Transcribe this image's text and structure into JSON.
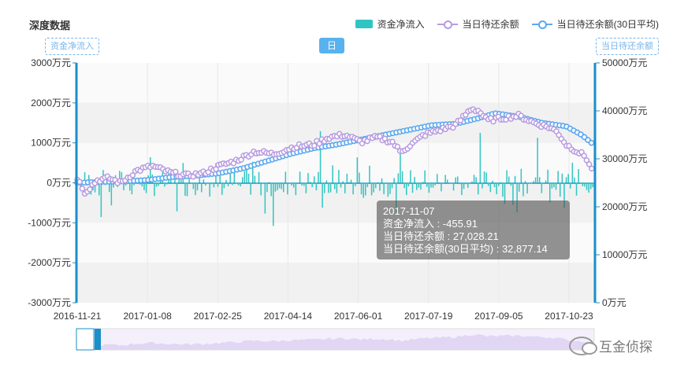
{
  "title": "深度数据",
  "legend": {
    "bar": "资金净流入",
    "line": "当日待还余额",
    "avg": "当日待还余额(30日平均)"
  },
  "controls": {
    "left_toggle": "资金净流入",
    "period": "日",
    "right_toggle": "当日待还余额"
  },
  "tooltip": {
    "date": "2017-11-07",
    "line1": "资金净流入 : -455.91",
    "line2": "当日待还余额 : 27,028.21",
    "line3": "当日待还余额(30日平均) : 32,877.14"
  },
  "watermark": "互金侦探",
  "colors": {
    "bar": "#31c5c1",
    "line": "#b79ce0",
    "avg": "#5aa9f0",
    "axis": "#1a8fc9"
  },
  "chart_data": {
    "type": "bar",
    "left_axis": {
      "ticks": [
        "3000万元",
        "2000万元",
        "1000万元",
        "0万元",
        "-1000万元",
        "-2000万元",
        "-3000万元"
      ],
      "range": [
        -3000,
        3000
      ]
    },
    "right_axis": {
      "ticks": [
        "50000万元",
        "40000万元",
        "30000万元",
        "20000万元",
        "10000万元",
        "0万元"
      ],
      "range": [
        0,
        50000
      ]
    },
    "x_ticks": [
      "2016-11-21",
      "2017-01-08",
      "2017-02-25",
      "2017-04-14",
      "2017-06-01",
      "2017-07-19",
      "2017-09-05",
      "2017-10-23"
    ],
    "balance_keypoints": [
      [
        0,
        26000
      ],
      [
        10,
        23000
      ],
      [
        25,
        25500
      ],
      [
        40,
        26000
      ],
      [
        55,
        25000
      ],
      [
        75,
        27500
      ],
      [
        95,
        28500
      ],
      [
        120,
        27000
      ],
      [
        140,
        26500
      ],
      [
        160,
        27000
      ],
      [
        180,
        28500
      ],
      [
        200,
        29500
      ],
      [
        225,
        31500
      ],
      [
        250,
        31000
      ],
      [
        275,
        32500
      ],
      [
        300,
        33000
      ],
      [
        320,
        34500
      ],
      [
        340,
        35000
      ],
      [
        360,
        33500
      ],
      [
        380,
        34500
      ],
      [
        400,
        33500
      ],
      [
        410,
        31500
      ],
      [
        420,
        32500
      ],
      [
        440,
        35000
      ],
      [
        460,
        36000
      ],
      [
        480,
        37000
      ],
      [
        500,
        40500
      ],
      [
        510,
        40000
      ],
      [
        520,
        38000
      ],
      [
        540,
        38500
      ],
      [
        560,
        39000
      ],
      [
        580,
        37500
      ],
      [
        600,
        36500
      ],
      [
        610,
        35500
      ],
      [
        620,
        33000
      ],
      [
        630,
        32000
      ],
      [
        645,
        30500
      ],
      [
        655,
        27000
      ]
    ],
    "avg_keypoints": [
      [
        0,
        25000
      ],
      [
        30,
        25200
      ],
      [
        60,
        25300
      ],
      [
        90,
        25600
      ],
      [
        120,
        26200
      ],
      [
        150,
        26500
      ],
      [
        180,
        27000
      ],
      [
        210,
        28000
      ],
      [
        240,
        29500
      ],
      [
        270,
        31000
      ],
      [
        300,
        32200
      ],
      [
        330,
        33000
      ],
      [
        360,
        34000
      ],
      [
        390,
        35000
      ],
      [
        420,
        36000
      ],
      [
        450,
        37000
      ],
      [
        480,
        37300
      ],
      [
        510,
        38500
      ],
      [
        530,
        39500
      ],
      [
        560,
        38800
      ],
      [
        590,
        37500
      ],
      [
        620,
        36800
      ],
      [
        640,
        35000
      ],
      [
        655,
        33000
      ]
    ]
  }
}
